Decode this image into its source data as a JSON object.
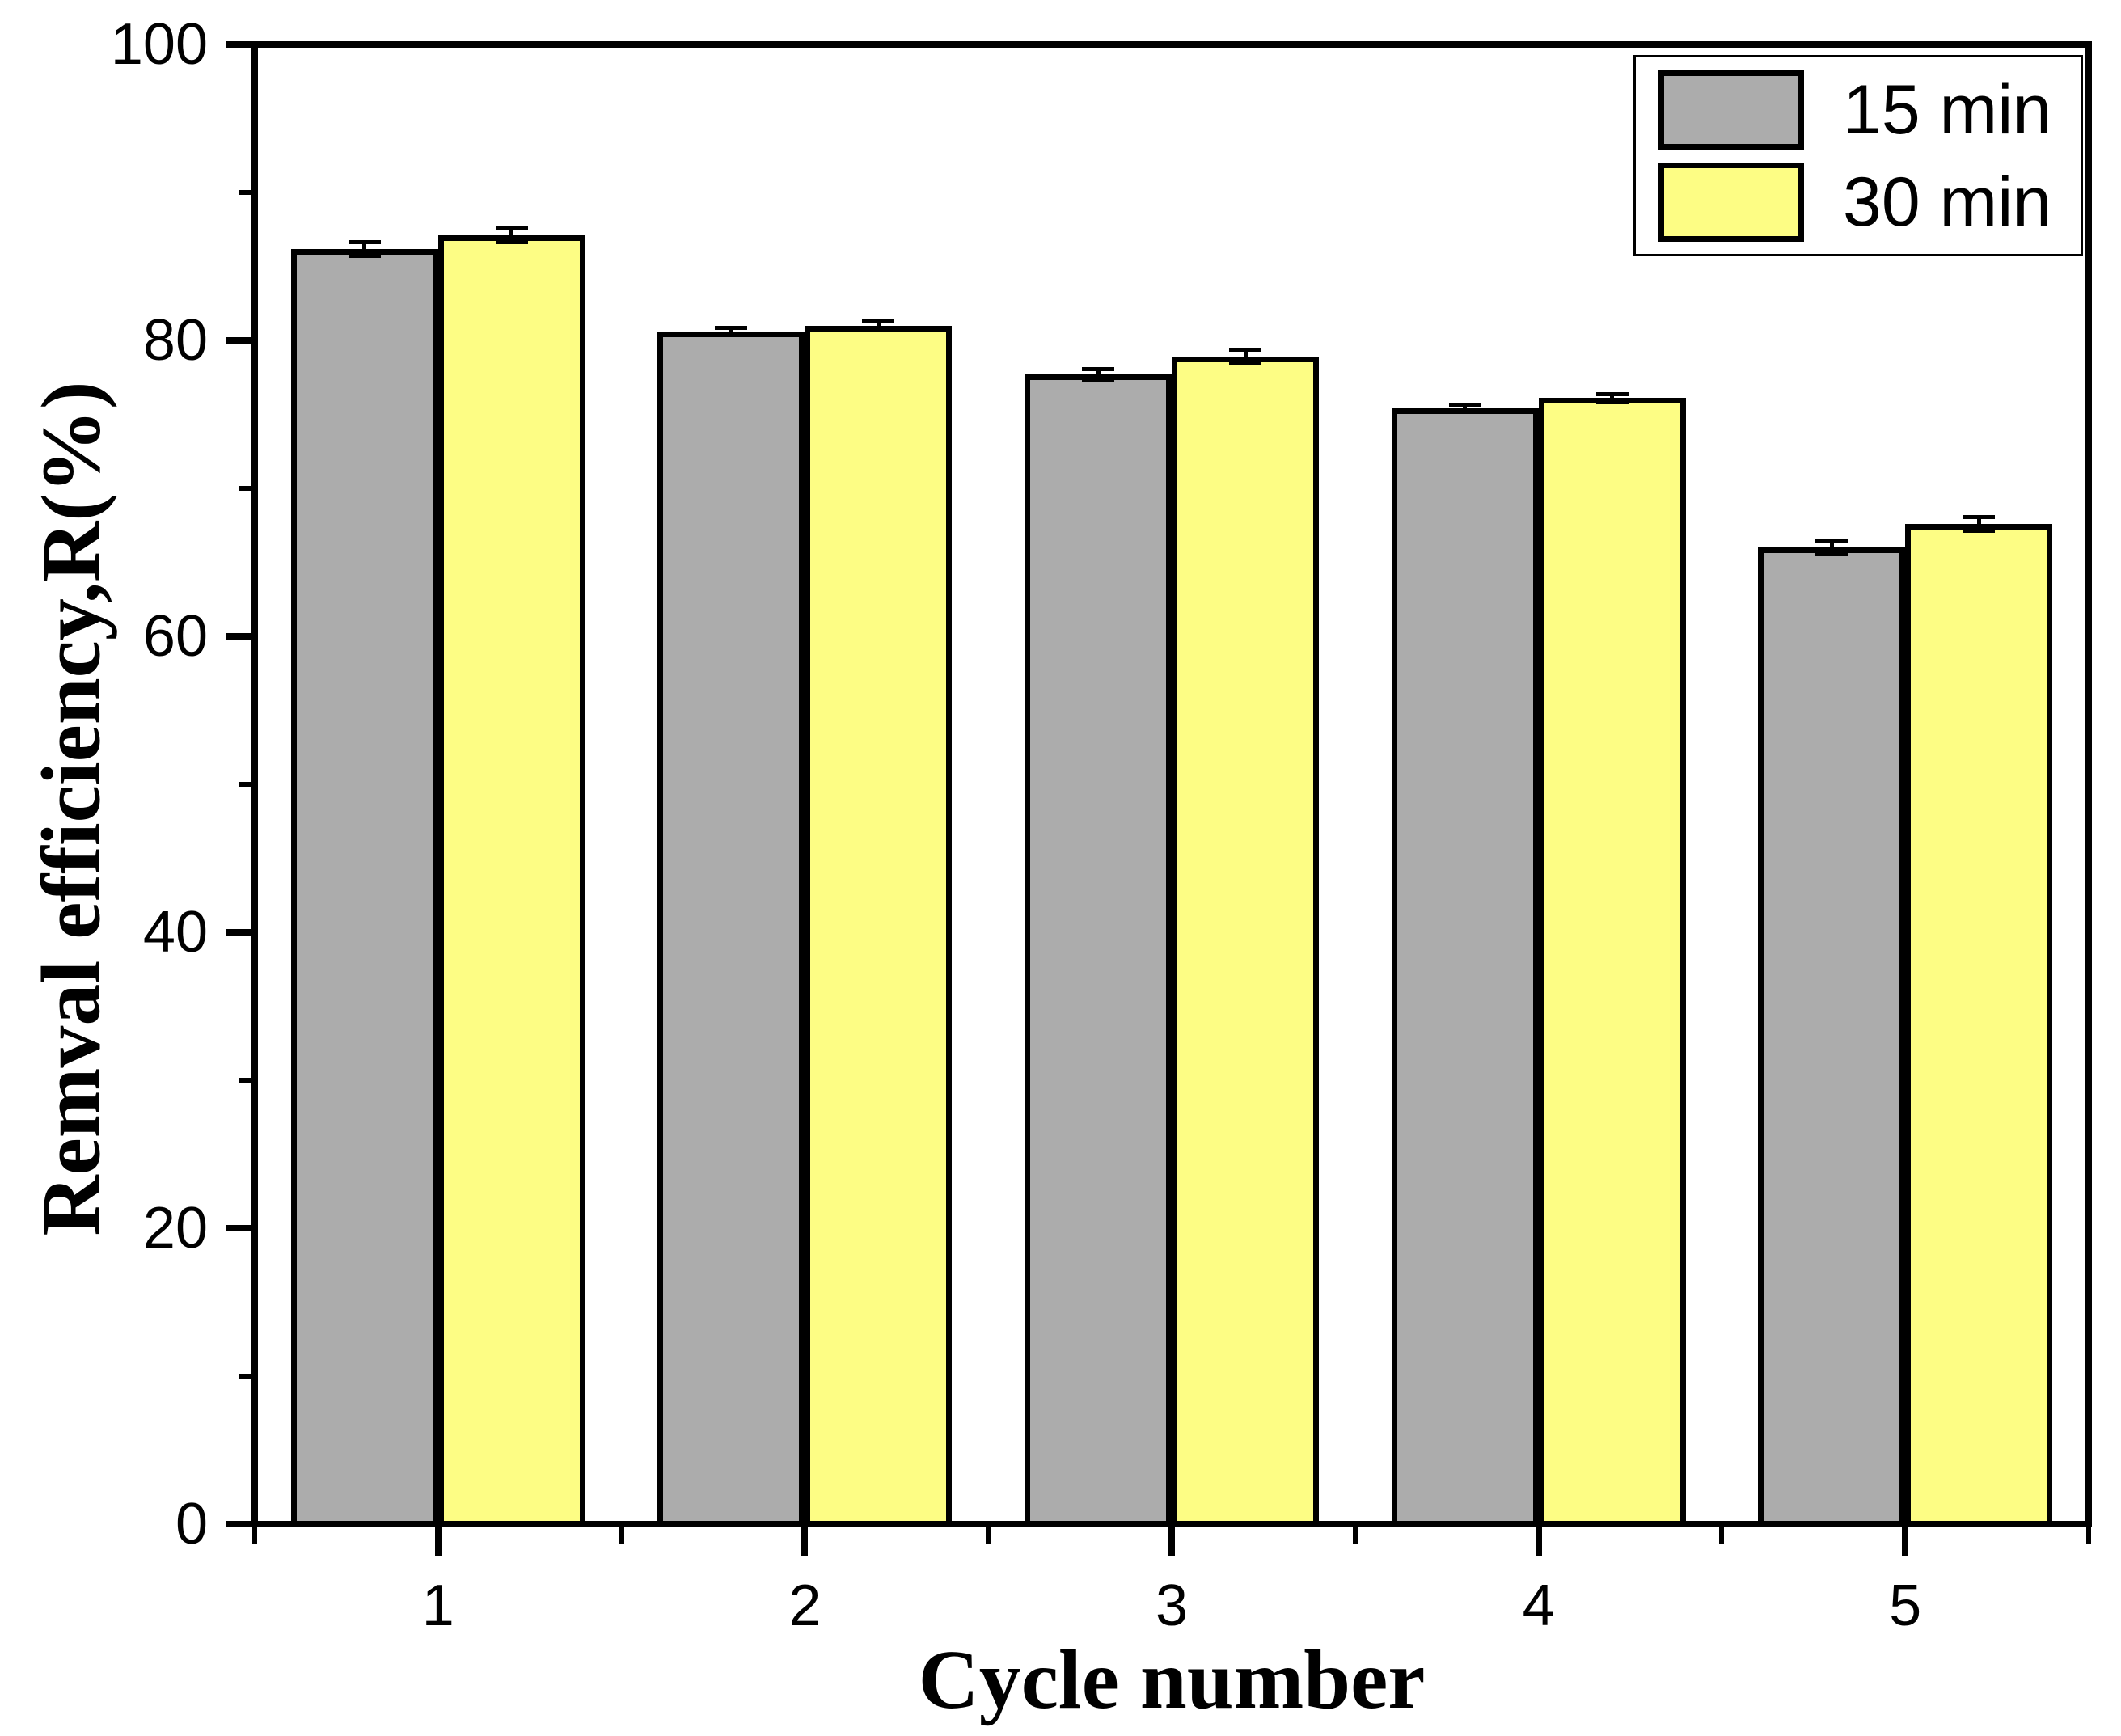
{
  "chart_data": {
    "type": "bar",
    "title": "",
    "xlabel": "Cycle number",
    "ylabel": "Remval efficiency,R(%)",
    "categories": [
      "1",
      "2",
      "3",
      "4",
      "5"
    ],
    "series": [
      {
        "name": "15 min",
        "color": "#ACACAC",
        "values": [
          86.2,
          80.6,
          77.7,
          75.4,
          66.0
        ],
        "errors": [
          0.6,
          0.4,
          0.5,
          0.4,
          0.6
        ]
      },
      {
        "name": "30 min",
        "color": "#FDFD84",
        "values": [
          87.1,
          81.0,
          78.9,
          76.1,
          67.6
        ],
        "errors": [
          0.6,
          0.4,
          0.6,
          0.4,
          0.6
        ]
      }
    ],
    "ylim": [
      0,
      100
    ],
    "y_major_ticks": [
      0,
      20,
      40,
      60,
      80,
      100
    ],
    "y_minor_ticks": [
      10,
      30,
      50,
      70,
      90
    ],
    "y_tick_labels": [
      "0",
      "20",
      "40",
      "60",
      "80",
      "100"
    ],
    "legend_position": "top-right",
    "grid": false,
    "error_bars": true,
    "bar_edge_color": "#000000",
    "axis_color": "#000000",
    "background_color": "#FFFFFF"
  }
}
